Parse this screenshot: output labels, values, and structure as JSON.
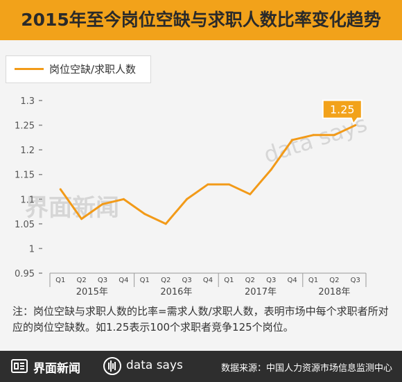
{
  "title": "2015年至今岗位空缺与求职人数比率变化趋势",
  "legend": {
    "label": "岗位空缺/求职人数"
  },
  "watermarks": {
    "jiemian": "界面新闻",
    "datasays": "data says"
  },
  "note": "注：岗位空缺与求职人数的比率=需求人数/求职人数，表明市场中每个求职者所对应的岗位空缺数。如1.25表示100个求职者竞争125个岗位。",
  "footer": {
    "brand_jiemian": "界面新闻",
    "brand_datasays": "data says",
    "source": "数据来源：中国人力资源市场信息监测中心"
  },
  "colors": {
    "accent": "#f2a21a",
    "line": "#f29a18",
    "footer": "#2e2e2e"
  },
  "icons": {
    "jiemian_logo": "jiemian-logo-icon",
    "datasays_logo": "datasays-logo-icon"
  },
  "chart_data": {
    "type": "line",
    "series": [
      {
        "name": "岗位空缺/求职人数",
        "values": [
          1.12,
          1.06,
          1.09,
          1.1,
          1.07,
          1.05,
          1.1,
          1.13,
          1.13,
          1.11,
          1.16,
          1.22,
          1.23,
          1.23,
          1.25
        ]
      }
    ],
    "quarters": [
      "Q1",
      "Q2",
      "Q3",
      "Q4",
      "Q1",
      "Q2",
      "Q3",
      "Q4",
      "Q1",
      "Q2",
      "Q3",
      "Q4",
      "Q1",
      "Q2",
      "Q3"
    ],
    "years": [
      {
        "label": "2015年",
        "quarters": 4
      },
      {
        "label": "2016年",
        "quarters": 4
      },
      {
        "label": "2017年",
        "quarters": 4
      },
      {
        "label": "2018年",
        "quarters": 3
      }
    ],
    "yticks": [
      "1.3",
      "1.25",
      "1.2",
      "1.15",
      "1.1",
      "1.05",
      "1",
      "0.95"
    ],
    "ylim": [
      0.95,
      1.3
    ],
    "callout": {
      "index": 14,
      "label": "1.25"
    },
    "grid": false,
    "legend_position": "top-left"
  }
}
